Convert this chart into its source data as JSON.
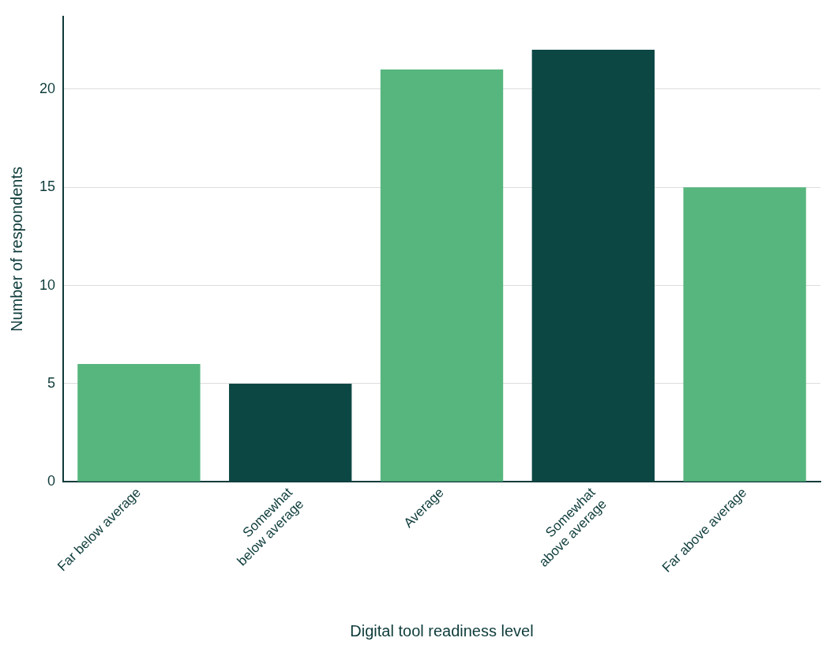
{
  "chart_data": {
    "type": "bar",
    "xlabel": "Digital tool readiness level",
    "ylabel": "Number of respondents",
    "categories": [
      "Far below average",
      "Somewhat\nbelow average",
      "Average",
      "Somewhat\nabove average",
      "Far above average"
    ],
    "values": [
      6,
      5,
      21,
      22,
      15
    ],
    "colors": [
      "#57b67e",
      "#0d4744",
      "#57b67e",
      "#0d4744",
      "#57b67e"
    ],
    "ylim": [
      0,
      23.7
    ],
    "yticks": [
      0,
      5,
      10,
      15,
      20
    ],
    "grid": "y",
    "legend": false
  }
}
